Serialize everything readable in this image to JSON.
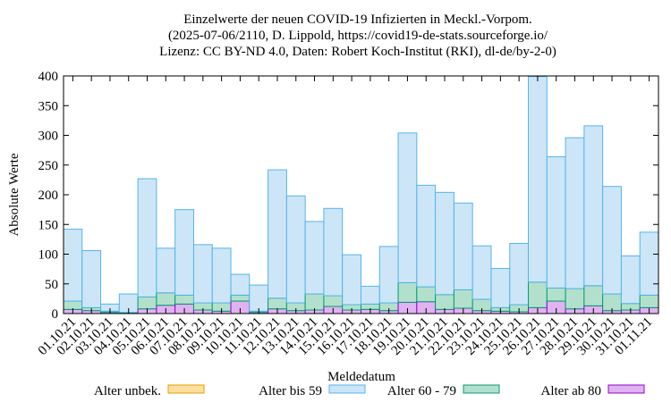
{
  "chart_data": {
    "type": "bar",
    "stacked": true,
    "title": "Einzelwerte der neuen COVID-19 Infizierten in Meckl.-Vorpom.",
    "subtitle": [
      "(2025-07-06/2110, D. Lippold, https://covid19-de-stats.sourceforge.io/",
      "Lizenz: CC BY-ND 4.0, Daten: Robert Koch-Institut (RKI), dl-de/by-2-0)"
    ],
    "x_label": "Meldedatum",
    "y_label": "Absolute Werte",
    "categories": [
      "01.10.21",
      "02.10.21",
      "03.10.21",
      "04.10.21",
      "05.10.21",
      "06.10.21",
      "07.10.21",
      "08.10.21",
      "09.10.21",
      "10.10.21",
      "11.10.21",
      "12.10.21",
      "13.10.21",
      "14.10.21",
      "15.10.21",
      "16.10.21",
      "17.10.21",
      "18.10.21",
      "19.10.21",
      "20.10.21",
      "21.10.21",
      "22.10.21",
      "23.10.21",
      "24.10.21",
      "25.10.21",
      "26.10.21",
      "27.10.21",
      "28.10.21",
      "29.10.21",
      "30.10.21",
      "31.10.21",
      "01.11.21"
    ],
    "series": [
      {
        "name": "Alter unbek.",
        "color": "#fde0a0",
        "stroke": "#e69f00",
        "values": [
          0,
          0,
          0,
          0,
          0,
          0,
          0,
          0,
          0,
          0,
          0,
          0,
          0,
          0,
          0,
          0,
          0,
          0,
          0,
          0,
          0,
          0,
          0,
          0,
          0,
          0,
          0,
          0,
          0,
          0,
          0,
          0
        ]
      },
      {
        "name": "Alter bis 59",
        "color": "#cce6f7",
        "stroke": "#56b4e9",
        "values": [
          121,
          96,
          12,
          31,
          199,
          75,
          144,
          98,
          92,
          35,
          44,
          216,
          180,
          122,
          147,
          84,
          30,
          95,
          252,
          171,
          172,
          146,
          90,
          66,
          103,
          346,
          221,
          254,
          269,
          181,
          80,
          106
        ]
      },
      {
        "name": "Alter 60 - 79",
        "color": "#b3e0cc",
        "stroke": "#009e73",
        "values": [
          14,
          5,
          2,
          1,
          20,
          21,
          15,
          12,
          14,
          10,
          2,
          18,
          13,
          27,
          18,
          9,
          9,
          13,
          33,
          25,
          25,
          31,
          19,
          6,
          12,
          43,
          22,
          34,
          34,
          28,
          11,
          21
        ]
      },
      {
        "name": "Alter ab 80",
        "color": "#e0b3f0",
        "stroke": "#9400d3",
        "values": [
          7,
          5,
          2,
          1,
          8,
          14,
          16,
          6,
          4,
          21,
          2,
          8,
          5,
          6,
          12,
          6,
          7,
          5,
          19,
          20,
          7,
          9,
          5,
          4,
          3,
          10,
          21,
          8,
          13,
          5,
          6,
          10
        ]
      }
    ],
    "ylim": [
      0,
      400
    ],
    "yticks": [
      0,
      50,
      100,
      150,
      200,
      250,
      300,
      350,
      400
    ],
    "grid": false
  }
}
